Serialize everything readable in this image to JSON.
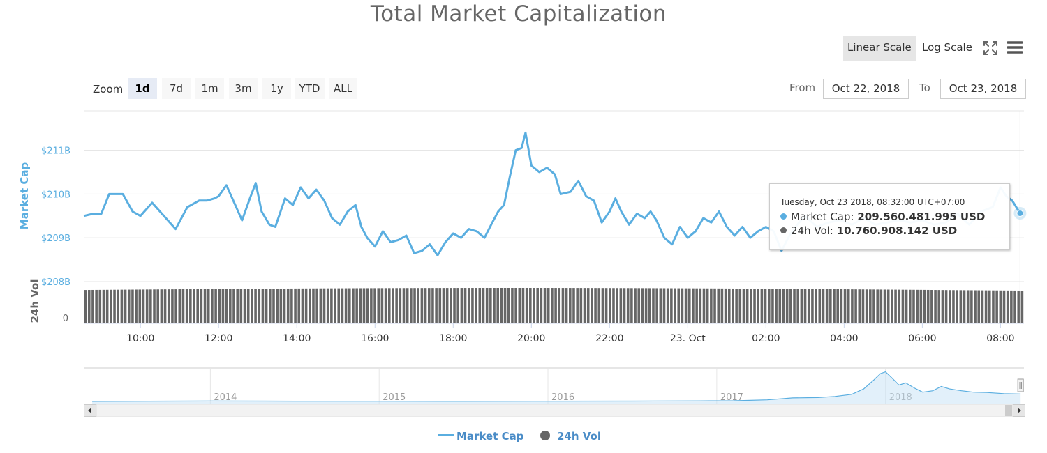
{
  "title": "Total Market Capitalization",
  "scale_buttons": {
    "linear": "Linear Scale",
    "log": "Log Scale"
  },
  "toolbar_icons": [
    "fullscreen-icon",
    "menu-icon"
  ],
  "zoom": {
    "label": "Zoom",
    "options": [
      "1d",
      "7d",
      "1m",
      "3m",
      "1y",
      "YTD",
      "ALL"
    ],
    "selected": "1d"
  },
  "range": {
    "from_label": "From",
    "from_value": "Oct 22, 2018",
    "to_label": "To",
    "to_value": "Oct 23, 2018"
  },
  "tooltip": {
    "header": "Tuesday, Oct 23 2018, 08:32:00 UTC+07:00",
    "market_cap_label": "Market Cap:",
    "market_cap_value": "209.560.481.995 USD",
    "vol_label": "24h Vol:",
    "vol_value": "10.760.908.142 USD"
  },
  "legend": {
    "market_cap": "Market Cap",
    "vol": "24h Vol"
  },
  "colors": {
    "market_cap": "#5aaee0",
    "vol": "#666666",
    "axis_label": "#5aaee0",
    "grid": "#e6e6e6"
  },
  "chart_data": {
    "type": "line",
    "ylabel": "Market Cap",
    "ylabel_secondary": "24h Vol",
    "y_ticks": [
      "$208B",
      "$209B",
      "$210B",
      "$211B"
    ],
    "y_secondary_ticks": [
      "0"
    ],
    "ylim": [
      208,
      211.9
    ],
    "x_ticks": [
      "10:00",
      "12:00",
      "14:00",
      "16:00",
      "18:00",
      "20:00",
      "22:00",
      "23. Oct",
      "02:00",
      "04:00",
      "06:00",
      "08:00"
    ],
    "x_range_hours": [
      8.55,
      32.6
    ],
    "series": [
      {
        "name": "Market Cap",
        "unit": "USD billions",
        "x_hours": [
          8.55,
          8.8,
          9.0,
          9.2,
          9.35,
          9.55,
          9.8,
          10.0,
          10.3,
          10.6,
          10.9,
          11.2,
          11.5,
          11.7,
          11.9,
          12.0,
          12.2,
          12.4,
          12.6,
          12.8,
          12.95,
          13.1,
          13.3,
          13.45,
          13.7,
          13.9,
          14.1,
          14.3,
          14.5,
          14.7,
          14.9,
          15.1,
          15.3,
          15.5,
          15.65,
          15.8,
          16.0,
          16.2,
          16.4,
          16.6,
          16.8,
          17.0,
          17.2,
          17.4,
          17.6,
          17.8,
          18.0,
          18.2,
          18.4,
          18.6,
          18.8,
          19.0,
          19.15,
          19.3,
          19.45,
          19.6,
          19.75,
          19.85,
          20.0,
          20.2,
          20.4,
          20.6,
          20.75,
          21.0,
          21.2,
          21.4,
          21.6,
          21.8,
          22.0,
          22.15,
          22.3,
          22.5,
          22.7,
          22.9,
          23.05,
          23.2,
          23.4,
          23.6,
          23.8,
          24.0,
          24.2,
          24.4,
          24.6,
          24.8,
          25.0,
          25.2,
          25.4,
          25.6,
          25.8,
          26.0,
          26.2,
          26.4,
          26.6,
          26.8,
          27.0,
          27.3,
          27.6,
          27.9,
          28.2,
          28.5,
          28.8,
          29.1,
          29.4,
          29.7,
          30.0,
          30.3,
          30.6,
          30.9,
          31.2,
          31.5,
          31.8,
          32.0,
          32.15,
          32.3,
          32.5
        ],
        "values": [
          209.5,
          209.55,
          209.55,
          210.0,
          210.0,
          210.0,
          209.6,
          209.5,
          209.8,
          209.5,
          209.2,
          209.7,
          209.85,
          209.85,
          209.9,
          209.95,
          210.2,
          209.8,
          209.4,
          209.9,
          210.25,
          209.6,
          209.3,
          209.25,
          209.9,
          209.75,
          210.15,
          209.9,
          210.1,
          209.85,
          209.45,
          209.3,
          209.6,
          209.75,
          209.25,
          209.0,
          208.8,
          209.15,
          208.9,
          208.95,
          209.05,
          208.65,
          208.7,
          208.85,
          208.6,
          208.9,
          209.1,
          209.0,
          209.2,
          209.15,
          209.0,
          209.35,
          209.6,
          209.75,
          210.4,
          211.0,
          211.05,
          211.4,
          210.65,
          210.5,
          210.6,
          210.45,
          210.0,
          210.05,
          210.3,
          209.95,
          209.85,
          209.35,
          209.6,
          209.9,
          209.6,
          209.3,
          209.55,
          209.45,
          209.6,
          209.4,
          209.0,
          208.85,
          209.25,
          209.0,
          209.15,
          209.45,
          209.35,
          209.6,
          209.25,
          209.05,
          209.25,
          209.0,
          209.15,
          209.25,
          209.15,
          208.7,
          209.05,
          209.3,
          209.5,
          209.25,
          209.35,
          209.4,
          209.3,
          209.45,
          209.3,
          209.35,
          209.4,
          209.35,
          209.4,
          209.3,
          209.35,
          209.55,
          209.3,
          209.6,
          209.7,
          210.15,
          209.95,
          209.85,
          209.56
        ]
      },
      {
        "name": "24h Vol",
        "unit": "USD billions",
        "bar_count": 260,
        "approx_value": 10.76
      }
    ],
    "navigator": {
      "x_ticks": [
        "2014",
        "2015",
        "2016",
        "2017",
        "2018"
      ],
      "x_year_range": [
        2013.25,
        2018.82
      ],
      "x_years": [
        2013.3,
        2013.8,
        2014.0,
        2014.5,
        2015.0,
        2015.5,
        2016.0,
        2016.5,
        2016.9,
        2017.1,
        2017.3,
        2017.45,
        2017.6,
        2017.7,
        2017.8,
        2017.87,
        2017.93,
        2017.97,
        2018.0,
        2018.04,
        2018.08,
        2018.12,
        2018.17,
        2018.22,
        2018.28,
        2018.33,
        2018.38,
        2018.45,
        2018.52,
        2018.6,
        2018.7,
        2018.8
      ],
      "values": [
        1,
        10,
        12,
        8,
        5,
        4,
        7,
        10,
        16,
        20,
        45,
        100,
        110,
        140,
        200,
        350,
        600,
        780,
        830,
        650,
        460,
        520,
        380,
        260,
        300,
        420,
        350,
        300,
        260,
        250,
        220,
        210
      ]
    },
    "legend_position": "bottom-center"
  }
}
